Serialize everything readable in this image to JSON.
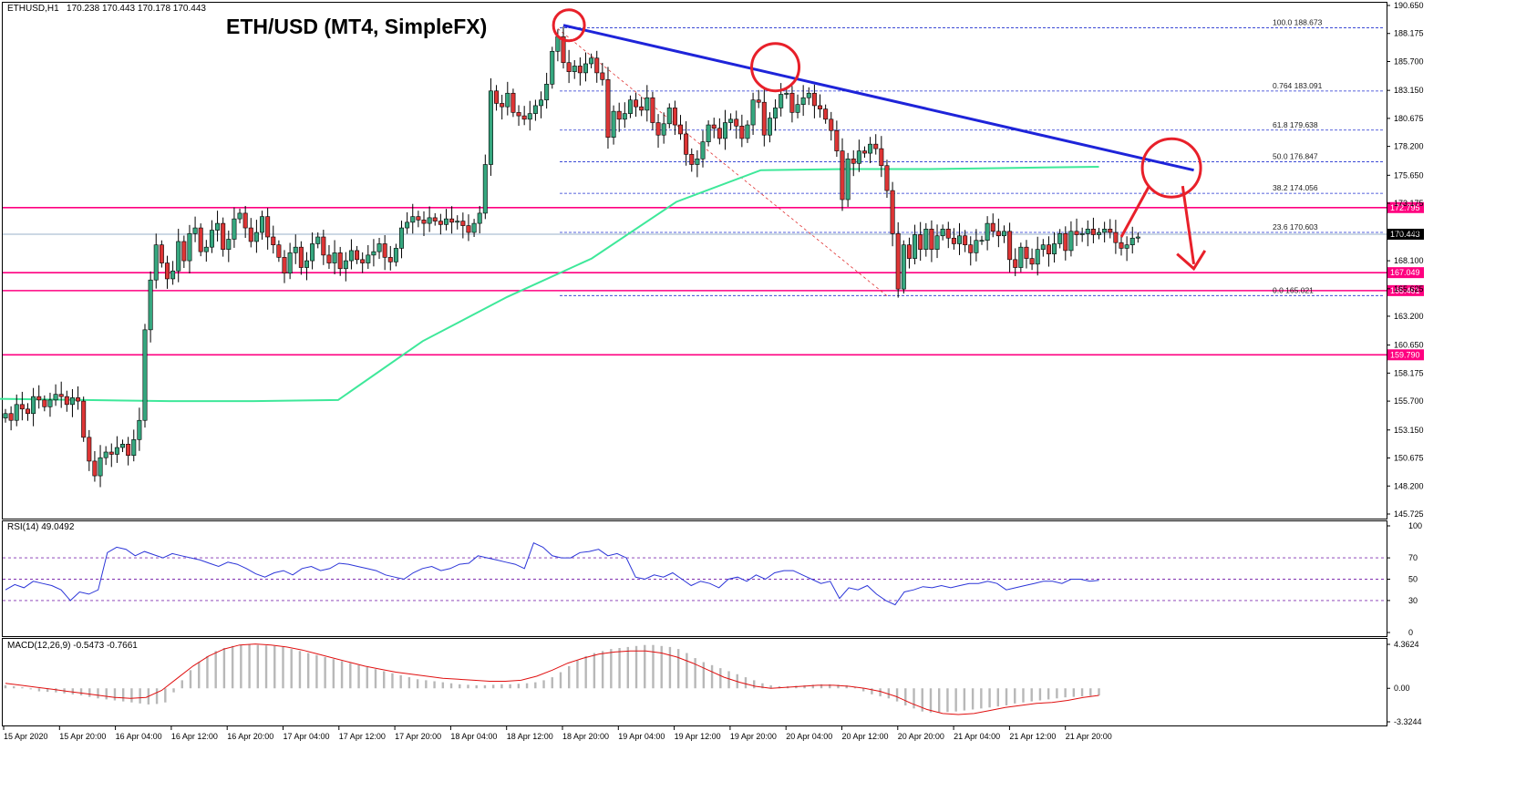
{
  "header": {
    "symbol": "ETHUSD,H1",
    "ohlc": "170.238 170.443 170.178 170.443",
    "title": "ETH/USD (MT4, SimpleFX)"
  },
  "colors": {
    "bull": "#36a77f",
    "bear": "#dd3535",
    "wick": "#000000",
    "support_line": "#ff0080",
    "trend_line": "#1e24d9",
    "ma": "#3ee89a",
    "fib": "#2030d0",
    "rsi": "#2b35d8",
    "rsi_levels": "#8030b0",
    "macd_hist": "#b8b8b8",
    "macd_signal": "#e01010",
    "annotation": "#e8202a"
  },
  "chart_data": [
    {
      "type": "candlestick",
      "panel": "price",
      "ylim": [
        145.725,
        190.65
      ],
      "y_ticks": [
        "190.650",
        "188.175",
        "185.700",
        "183.150",
        "180.675",
        "178.200",
        "175.650",
        "173.175",
        "170.650",
        "168.100",
        "165.625",
        "163.200",
        "160.650",
        "158.175",
        "155.700",
        "153.150",
        "150.675",
        "148.200",
        "145.725"
      ],
      "x_ticks": [
        "15 Apr 2020",
        "15 Apr 20:00",
        "16 Apr 04:00",
        "16 Apr 12:00",
        "16 Apr 20:00",
        "17 Apr 04:00",
        "17 Apr 12:00",
        "17 Apr 20:00",
        "18 Apr 04:00",
        "18 Apr 12:00",
        "18 Apr 20:00",
        "19 Apr 04:00",
        "19 Apr 12:00",
        "19 Apr 20:00",
        "20 Apr 04:00",
        "20 Apr 12:00",
        "20 Apr 20:00",
        "21 Apr 04:00",
        "21 Apr 12:00",
        "21 Apr 20:00"
      ],
      "closes": [
        154.6,
        154.0,
        155.4,
        155.0,
        154.6,
        156.1,
        155.8,
        155.2,
        155.8,
        156.3,
        156.1,
        155.4,
        156.0,
        155.7,
        152.5,
        150.4,
        149.1,
        150.7,
        151.2,
        151.0,
        151.6,
        151.9,
        150.9,
        152.3,
        154.0,
        162.0,
        166.4,
        169.5,
        167.9,
        166.5,
        167.2,
        169.8,
        168.1,
        170.5,
        171.0,
        168.9,
        169.3,
        170.8,
        171.4,
        169.1,
        170.0,
        171.8,
        172.3,
        171.0,
        169.8,
        170.6,
        172.0,
        170.2,
        169.5,
        168.4,
        167.0,
        168.8,
        169.3,
        167.5,
        168.1,
        169.6,
        170.2,
        168.6,
        167.9,
        168.8,
        167.4,
        168.1,
        169.0,
        168.2,
        167.9,
        168.6,
        168.9,
        169.6,
        168.4,
        168.0,
        169.2,
        171.0,
        171.5,
        172.0,
        171.7,
        171.4,
        171.9,
        171.6,
        171.3,
        171.8,
        171.5,
        171.6,
        171.2,
        170.6,
        171.4,
        172.3,
        176.6,
        183.1,
        182.0,
        181.7,
        182.9,
        181.2,
        180.9,
        180.6,
        181.1,
        181.8,
        182.3,
        183.7,
        186.6,
        187.9,
        185.6,
        184.8,
        185.3,
        184.7,
        185.5,
        186.0,
        184.7,
        184.1,
        179.0,
        181.3,
        180.6,
        181.1,
        182.3,
        181.7,
        181.4,
        182.5,
        180.3,
        179.2,
        180.2,
        181.6,
        180.1,
        179.3,
        177.5,
        176.6,
        177.1,
        178.6,
        180.1,
        179.8,
        178.9,
        180.3,
        180.6,
        180.0,
        178.9,
        180.1,
        182.3,
        182.1,
        179.2,
        180.7,
        181.6,
        182.8,
        182.9,
        181.2,
        181.9,
        182.5,
        182.9,
        181.8,
        181.5,
        180.6,
        179.6,
        177.8,
        173.5,
        177.1,
        176.7,
        177.8,
        177.6,
        178.4,
        178.0,
        176.5,
        174.3,
        170.5,
        165.6,
        169.5,
        168.3,
        170.4,
        169.1,
        170.9,
        169.1,
        170.3,
        170.9,
        170.1,
        169.6,
        170.3,
        169.5,
        168.8,
        169.9,
        169.9,
        171.4,
        170.7,
        170.3,
        170.7,
        168.2,
        167.5,
        169.3,
        168.3,
        167.8,
        169.1,
        169.5,
        168.7,
        169.6,
        170.5,
        169.0,
        170.7,
        170.4,
        170.5,
        170.9,
        170.4,
        170.6,
        170.9,
        170.6,
        169.7,
        169.2,
        169.5,
        170.1,
        170.2
      ],
      "ma": {
        "values": [
          155.9,
          155.8,
          155.7,
          155.7,
          155.8,
          161.0,
          164.9,
          168.3,
          173.3,
          176.1,
          176.2,
          176.2,
          176.3,
          176.4
        ]
      },
      "support_levels": [
        {
          "price": 172.795,
          "label": "172.795"
        },
        {
          "price": 167.049,
          "label": "167.049"
        },
        {
          "price": 165.461,
          "label": "165.461"
        },
        {
          "price": 159.79,
          "label": "159.790"
        }
      ],
      "current_price": {
        "price": 170.443,
        "label": "170.443"
      },
      "fibonacci": [
        {
          "level": "100.0",
          "price": 188.673,
          "label": "100.0  188.673"
        },
        {
          "level": "0.764",
          "price": 183.091,
          "label": "0.764  183.091"
        },
        {
          "level": "61.8",
          "price": 179.638,
          "label": "61.8  179.638"
        },
        {
          "level": "50.0",
          "price": 176.847,
          "label": "50.0  176.847"
        },
        {
          "level": "38.2",
          "price": 174.056,
          "label": "38.2  174.056"
        },
        {
          "level": "23.6",
          "price": 170.603,
          "label": "23.6  170.603"
        },
        {
          "level": "0.0",
          "price": 165.021,
          "label": "0.0  165.021"
        }
      ],
      "trend_line": {
        "from_price": 188.9,
        "to_price": 176.1
      }
    },
    {
      "type": "line",
      "panel": "rsi",
      "name": "RSI(14) 49.0492",
      "ylim": [
        0,
        100
      ],
      "y_ticks": [
        "100",
        "70",
        "50",
        "30",
        "0"
      ],
      "values": [
        40,
        45,
        42,
        48,
        46,
        44,
        40,
        30,
        38,
        36,
        40,
        75,
        80,
        78,
        72,
        76,
        73,
        70,
        74,
        72,
        70,
        68,
        65,
        62,
        66,
        64,
        60,
        55,
        52,
        56,
        58,
        54,
        60,
        62,
        58,
        60,
        65,
        64,
        62,
        60,
        58,
        54,
        52,
        50,
        56,
        60,
        62,
        58,
        60,
        64,
        65,
        72,
        70,
        68,
        66,
        64,
        60,
        84,
        80,
        72,
        70,
        70,
        75,
        76,
        78,
        72,
        74,
        70,
        52,
        50,
        54,
        52,
        56,
        50,
        44,
        48,
        46,
        42,
        50,
        52,
        48,
        54,
        50,
        56,
        58,
        58,
        54,
        50,
        46,
        48,
        32,
        42,
        40,
        44,
        36,
        30,
        26,
        38,
        40,
        43,
        42,
        44,
        42,
        44,
        46,
        46,
        48,
        46,
        40,
        42,
        44,
        46,
        48,
        48,
        46,
        50,
        50,
        48,
        49
      ]
    },
    {
      "type": "bar",
      "panel": "macd",
      "name": "MACD(12,26,9) -0.5473 -0.7661",
      "ylim": [
        -3.3244,
        4.3624
      ],
      "y_ticks": [
        "4.3624",
        "0.00",
        "-3.3244"
      ],
      "histogram": [
        0.3,
        0.2,
        0.1,
        -0.1,
        -0.3,
        -0.35,
        -0.4,
        -0.5,
        -0.6,
        -0.7,
        -0.85,
        -1.0,
        -1.1,
        -1.2,
        -1.3,
        -1.4,
        -1.5,
        -1.6,
        -1.55,
        -1.4,
        -0.4,
        0.8,
        1.8,
        2.6,
        3.2,
        3.7,
        4.0,
        4.2,
        4.3,
        4.35,
        4.3,
        4.25,
        4.2,
        4.1,
        3.9,
        3.7,
        3.5,
        3.3,
        3.1,
        2.9,
        2.7,
        2.5,
        2.3,
        2.1,
        1.9,
        1.7,
        1.5,
        1.3,
        1.1,
        0.9,
        0.8,
        0.7,
        0.6,
        0.5,
        0.4,
        0.35,
        0.3,
        0.3,
        0.35,
        0.4,
        0.4,
        0.45,
        0.5,
        0.6,
        0.8,
        1.1,
        1.6,
        2.2,
        2.8,
        3.2,
        3.5,
        3.7,
        3.9,
        4.0,
        4.1,
        4.2,
        4.3,
        4.3,
        4.2,
        4.1,
        3.9,
        3.5,
        3.0,
        2.6,
        2.3,
        2.0,
        1.7,
        1.4,
        1.1,
        0.8,
        0.5,
        0.3,
        0.2,
        0.2,
        0.25,
        0.3,
        0.35,
        0.4,
        0.4,
        0.35,
        0.3,
        0.1,
        -0.3,
        -0.6,
        -0.8,
        -1.0,
        -1.3,
        -1.7,
        -2.0,
        -2.3,
        -2.4,
        -2.4,
        -2.35,
        -2.3,
        -2.2,
        -2.1,
        -2.0,
        -1.9,
        -1.8,
        -1.7,
        -1.5,
        -1.4,
        -1.3,
        -1.2,
        -1.1,
        -1.0,
        -0.9,
        -0.85,
        -0.8,
        -0.75,
        -0.7
      ],
      "signal": [
        0.5,
        0.3,
        0.1,
        -0.1,
        -0.3,
        -0.5,
        -0.7,
        -0.9,
        -1.0,
        -0.9,
        -0.2,
        1.0,
        2.2,
        3.2,
        3.9,
        4.3,
        4.4,
        4.3,
        4.1,
        3.8,
        3.4,
        3.0,
        2.6,
        2.2,
        1.9,
        1.6,
        1.4,
        1.2,
        1.0,
        0.9,
        0.8,
        0.7,
        0.7,
        0.8,
        1.2,
        1.8,
        2.5,
        3.0,
        3.4,
        3.6,
        3.7,
        3.7,
        3.5,
        3.1,
        2.5,
        1.8,
        1.1,
        0.6,
        0.2,
        0.0,
        0.1,
        0.2,
        0.3,
        0.3,
        0.2,
        0.0,
        -0.3,
        -0.8,
        -1.5,
        -2.1,
        -2.5,
        -2.6,
        -2.5,
        -2.2,
        -1.9,
        -1.7,
        -1.5,
        -1.4,
        -1.2,
        -0.9,
        -0.7
      ]
    }
  ]
}
